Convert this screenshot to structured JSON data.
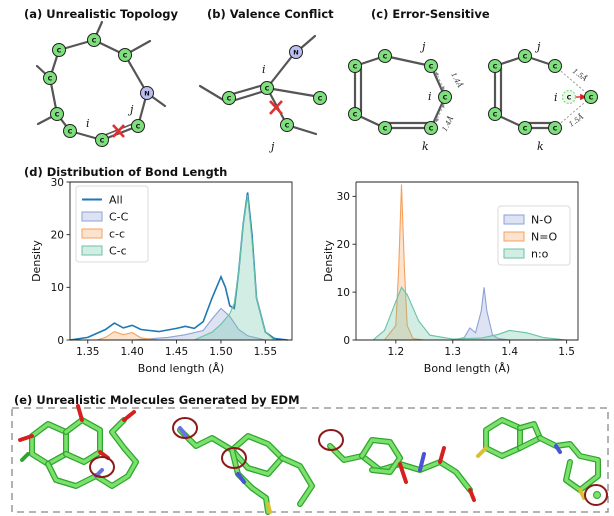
{
  "panels": {
    "a": {
      "title": "(a) Unrealistic Topology",
      "atom_c": "C",
      "atom_n": "N",
      "label_i": "i",
      "label_j": "j"
    },
    "b": {
      "title": "(b) Valence Conflict",
      "atom_c": "C",
      "atom_n": "N",
      "label_i": "i",
      "label_j": "j"
    },
    "c": {
      "title": "(c) Error-Sensitive",
      "atom_c": "C",
      "label_i": "i",
      "label_j": "j",
      "label_k": "k",
      "bond_1": "1.4Å",
      "bond_2": "1.5Å"
    },
    "d": {
      "title": "(d) Distribution of Bond Length"
    },
    "e": {
      "title": "(e) Unrealistic Molecules Generated by EDM"
    }
  },
  "chart_data": [
    {
      "type": "line",
      "xlabel": "Bond length (Å)",
      "ylabel": "Density",
      "xlim": [
        1.33,
        1.58
      ],
      "ylim": [
        0,
        30
      ],
      "x_ticks": [
        "1.35",
        "1.40",
        "1.45",
        "1.50",
        "1.55"
      ],
      "y_ticks": [
        "0",
        "10",
        "20",
        "30"
      ],
      "legend_position": "top-left",
      "series": [
        {
          "name": "All",
          "kind": "line",
          "color": "#1f77b4",
          "x": [
            1.33,
            1.35,
            1.37,
            1.38,
            1.39,
            1.4,
            1.41,
            1.43,
            1.45,
            1.46,
            1.47,
            1.48,
            1.49,
            1.5,
            1.505,
            1.51,
            1.515,
            1.52,
            1.525,
            1.53,
            1.535,
            1.54,
            1.55,
            1.56,
            1.575
          ],
          "y": [
            0,
            0.5,
            2.0,
            3.2,
            2.3,
            2.8,
            2.0,
            1.6,
            2.2,
            2.6,
            2.2,
            3.5,
            8.0,
            12.0,
            10.0,
            6.5,
            6.0,
            13.0,
            22.0,
            28.0,
            20.0,
            8.0,
            1.5,
            0.3,
            0
          ]
        },
        {
          "name": "C-C",
          "kind": "area",
          "color": "#8ea2d6",
          "x": [
            1.4,
            1.44,
            1.46,
            1.48,
            1.49,
            1.5,
            1.51,
            1.52,
            1.53,
            1.55
          ],
          "y": [
            0,
            0.5,
            1.0,
            1.8,
            4.0,
            6.0,
            4.5,
            2.0,
            0.8,
            0
          ]
        },
        {
          "name": "c-c",
          "kind": "area",
          "color": "#f4a15d",
          "x": [
            1.36,
            1.37,
            1.38,
            1.39,
            1.4,
            1.41,
            1.43
          ],
          "y": [
            0,
            0.5,
            1.6,
            1.0,
            1.4,
            0.4,
            0
          ]
        },
        {
          "name": "C-c",
          "kind": "area",
          "color": "#69c2a3",
          "x": [
            1.47,
            1.49,
            1.5,
            1.51,
            1.515,
            1.52,
            1.525,
            1.53,
            1.535,
            1.54,
            1.55,
            1.56
          ],
          "y": [
            0,
            1.5,
            3.0,
            5.0,
            7.0,
            13.0,
            22.0,
            27.5,
            19.0,
            8.0,
            1.5,
            0
          ]
        }
      ]
    },
    {
      "type": "area",
      "xlabel": "Bond length (Å)",
      "ylabel": "Density",
      "xlim": [
        1.13,
        1.52
      ],
      "ylim": [
        0,
        33
      ],
      "x_ticks": [
        "1.2",
        "1.3",
        "1.4",
        "1.5"
      ],
      "y_ticks": [
        "0",
        "10",
        "20",
        "30"
      ],
      "legend_position": "top-right",
      "series": [
        {
          "name": "N-O",
          "kind": "area",
          "color": "#8ea2d6",
          "x": [
            1.3,
            1.32,
            1.33,
            1.34,
            1.35,
            1.355,
            1.36,
            1.37,
            1.38,
            1.4
          ],
          "y": [
            0,
            0.5,
            2.5,
            1.5,
            6.0,
            11.0,
            6.0,
            1.0,
            0.3,
            0
          ]
        },
        {
          "name": "N=O",
          "kind": "area",
          "color": "#f4a15d",
          "x": [
            1.18,
            1.2,
            1.205,
            1.21,
            1.215,
            1.22,
            1.23,
            1.25
          ],
          "y": [
            0,
            3.0,
            15.0,
            32.5,
            15.0,
            3.0,
            0.3,
            0
          ]
        },
        {
          "name": "n:o",
          "kind": "area",
          "color": "#69c2a3",
          "x": [
            1.16,
            1.18,
            1.2,
            1.21,
            1.22,
            1.24,
            1.26,
            1.3,
            1.35,
            1.38,
            1.4,
            1.43,
            1.46,
            1.5
          ],
          "y": [
            0,
            2.0,
            8.0,
            11.0,
            9.5,
            4.0,
            1.0,
            0.2,
            0.4,
            1.2,
            2.0,
            1.5,
            0.5,
            0
          ]
        }
      ]
    }
  ]
}
